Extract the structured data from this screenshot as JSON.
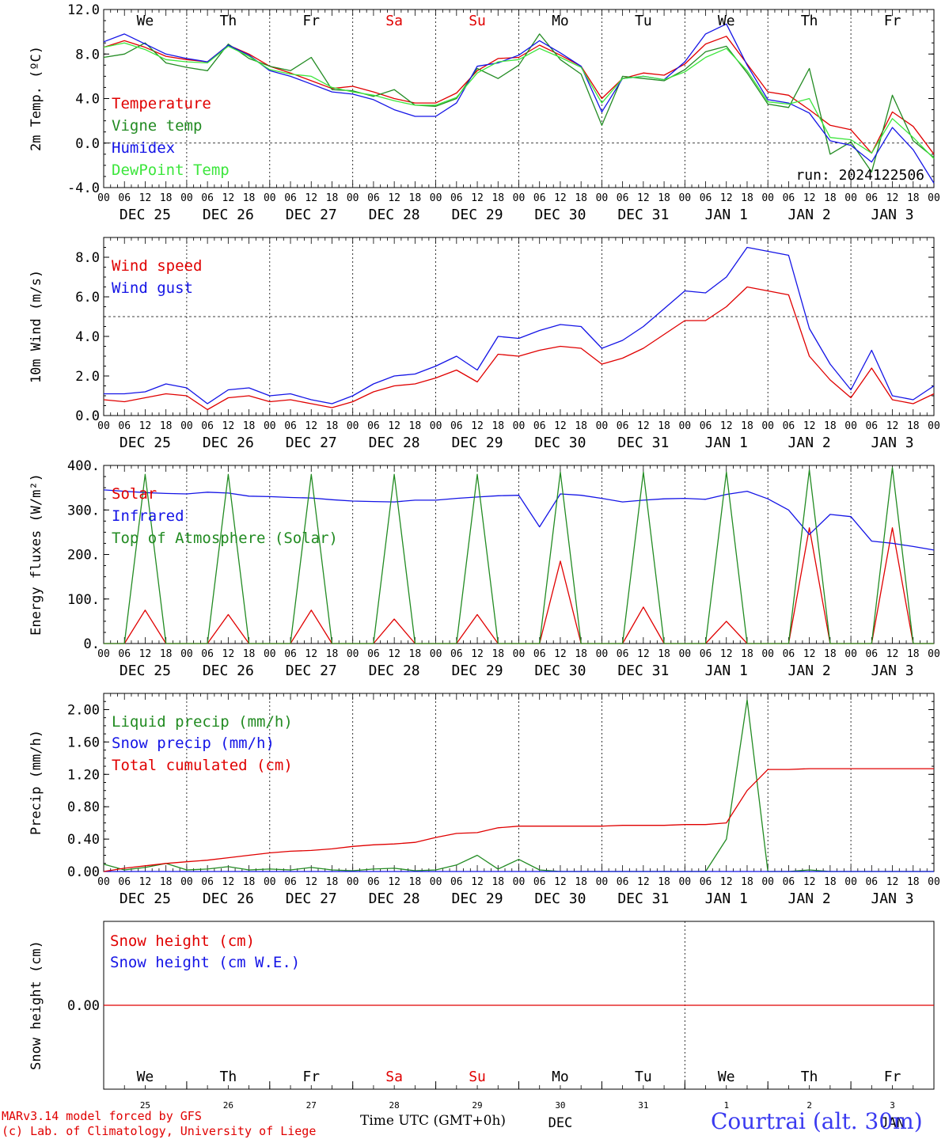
{
  "chart_data": [
    {
      "type": "line",
      "id": "temp",
      "ylabel": "2m Temp. (ºC)",
      "ylim": [
        -4,
        12
      ],
      "yticks": [
        "-4.0",
        "0.0",
        "4.0",
        "8.0",
        "12.0"
      ],
      "ytick_values": [
        -4,
        0,
        4,
        8,
        12
      ],
      "reference_line": 0,
      "day_labels": [
        "We",
        "Th",
        "Fr",
        "Sa",
        "Su",
        "Mo",
        "Tu",
        "We",
        "Th",
        "Fr"
      ],
      "day_label_colors": [
        "#000000",
        "#000000",
        "#000000",
        "#e00000",
        "#e00000",
        "#000000",
        "#000000",
        "#000000",
        "#000000",
        "#000000"
      ],
      "annotation": "run: 2024122506",
      "x_hours": [
        0,
        6,
        12,
        18,
        24,
        30,
        36,
        42,
        48,
        54,
        60,
        66,
        72,
        78,
        84,
        90,
        96,
        102,
        108,
        114,
        120,
        126,
        132,
        138,
        144,
        150,
        156,
        162,
        168,
        174,
        180,
        186,
        192,
        198,
        204,
        210,
        216,
        222,
        228,
        234,
        240
      ],
      "series": [
        {
          "name": "Temperature",
          "color": "#e00000",
          "values": [
            8.6,
            9.2,
            8.6,
            7.8,
            7.5,
            7.3,
            8.8,
            8.0,
            6.9,
            6.3,
            5.6,
            4.9,
            5.1,
            4.6,
            4.0,
            3.6,
            3.6,
            4.5,
            6.5,
            7.6,
            7.7,
            8.8,
            7.9,
            6.9,
            4.0,
            5.8,
            6.3,
            6.1,
            7.1,
            8.9,
            9.6,
            7.1,
            4.6,
            4.3,
            3.0,
            1.6,
            1.2,
            -0.9,
            2.8,
            1.5,
            -1.0
          ]
        },
        {
          "name": "Vigne temp",
          "color": "#228b22",
          "values": [
            7.7,
            8.0,
            9.0,
            7.2,
            6.8,
            6.5,
            8.9,
            7.6,
            6.9,
            6.5,
            7.7,
            4.8,
            4.7,
            4.2,
            4.8,
            3.4,
            3.3,
            4.0,
            6.7,
            5.8,
            7.0,
            9.8,
            7.5,
            6.2,
            1.6,
            6.0,
            5.8,
            5.6,
            6.6,
            8.2,
            8.7,
            6.3,
            3.5,
            3.2,
            6.7,
            -1.0,
            0.1,
            -2.6,
            4.3,
            0.2,
            -1.3
          ]
        },
        {
          "name": "Humidex",
          "color": "#1414e6",
          "values": [
            9.1,
            9.8,
            8.9,
            8.0,
            7.6,
            7.3,
            8.8,
            7.9,
            6.5,
            6.0,
            5.3,
            4.6,
            4.4,
            3.9,
            3.0,
            2.4,
            2.4,
            3.6,
            6.9,
            7.2,
            7.9,
            9.2,
            8.1,
            6.9,
            2.8,
            5.8,
            6.0,
            5.7,
            7.3,
            9.8,
            10.7,
            7.0,
            3.9,
            3.6,
            2.7,
            0.2,
            -0.2,
            -1.7,
            1.4,
            -0.6,
            -3.6
          ]
        },
        {
          "name": "DewPoint Temp",
          "color": "#3ce63c",
          "values": [
            8.6,
            9.0,
            8.4,
            7.5,
            7.3,
            7.2,
            8.7,
            7.8,
            6.6,
            6.2,
            6.0,
            5.0,
            4.6,
            4.3,
            3.8,
            3.4,
            3.4,
            4.1,
            6.3,
            7.3,
            7.5,
            8.5,
            7.7,
            6.8,
            3.6,
            5.8,
            6.0,
            5.7,
            6.4,
            7.7,
            8.5,
            6.5,
            3.7,
            3.5,
            4.0,
            0.5,
            0.3,
            -0.9,
            2.2,
            0.5,
            -1.4
          ]
        }
      ]
    },
    {
      "type": "line",
      "id": "wind",
      "ylabel": "10m Wind (m/s)",
      "ylim": [
        0,
        9
      ],
      "yticks": [
        "0.0",
        "2.0",
        "4.0",
        "6.0",
        "8.0"
      ],
      "ytick_values": [
        0,
        2,
        4,
        6,
        8
      ],
      "reference_line": 5,
      "x_hours": [
        0,
        6,
        12,
        18,
        24,
        30,
        36,
        42,
        48,
        54,
        60,
        66,
        72,
        78,
        84,
        90,
        96,
        102,
        108,
        114,
        120,
        126,
        132,
        138,
        144,
        150,
        156,
        162,
        168,
        174,
        180,
        186,
        192,
        198,
        204,
        210,
        216,
        222,
        228,
        234,
        240
      ],
      "series": [
        {
          "name": "Wind speed",
          "color": "#e00000",
          "values": [
            0.8,
            0.7,
            0.9,
            1.1,
            1.0,
            0.3,
            0.9,
            1.0,
            0.7,
            0.8,
            0.6,
            0.4,
            0.7,
            1.2,
            1.5,
            1.6,
            1.9,
            2.3,
            1.7,
            3.1,
            3.0,
            3.3,
            3.5,
            3.4,
            2.6,
            2.9,
            3.4,
            4.1,
            4.8,
            4.8,
            5.5,
            6.5,
            6.3,
            6.1,
            3.0,
            1.8,
            0.9,
            2.4,
            0.8,
            0.6,
            1.1
          ]
        },
        {
          "name": "Wind gust",
          "color": "#1414e6",
          "values": [
            1.1,
            1.1,
            1.2,
            1.6,
            1.4,
            0.6,
            1.3,
            1.4,
            1.0,
            1.1,
            0.8,
            0.6,
            1.0,
            1.6,
            2.0,
            2.1,
            2.5,
            3.0,
            2.3,
            4.0,
            3.9,
            4.3,
            4.6,
            4.5,
            3.4,
            3.8,
            4.5,
            5.4,
            6.3,
            6.2,
            7.0,
            8.5,
            8.3,
            8.1,
            4.4,
            2.6,
            1.3,
            3.3,
            1.0,
            0.8,
            1.5
          ]
        }
      ]
    },
    {
      "type": "line",
      "id": "flux",
      "ylabel": "Energy fluxes (W/m²)",
      "ylim": [
        0,
        400
      ],
      "yticks": [
        "0.",
        "100.",
        "200.",
        "300.",
        "400."
      ],
      "ytick_values": [
        0,
        100,
        200,
        300,
        400
      ],
      "x_hours": [
        0,
        6,
        12,
        18,
        24,
        30,
        36,
        42,
        48,
        54,
        60,
        66,
        72,
        78,
        84,
        90,
        96,
        102,
        108,
        114,
        120,
        126,
        132,
        138,
        144,
        150,
        156,
        162,
        168,
        174,
        180,
        186,
        192,
        198,
        204,
        210,
        216,
        222,
        228,
        234,
        240
      ],
      "series": [
        {
          "name": "Solar",
          "color": "#e00000",
          "values": [
            0,
            0,
            75,
            0,
            0,
            0,
            65,
            0,
            0,
            0,
            75,
            0,
            0,
            0,
            55,
            0,
            0,
            0,
            65,
            0,
            0,
            0,
            185,
            0,
            0,
            0,
            82,
            0,
            0,
            0,
            50,
            0,
            0,
            0,
            260,
            0,
            0,
            0,
            260,
            0,
            0
          ]
        },
        {
          "name": "Infrared",
          "color": "#1414e6",
          "values": [
            345,
            342,
            339,
            337,
            336,
            340,
            338,
            331,
            330,
            328,
            327,
            323,
            320,
            319,
            318,
            322,
            322,
            326,
            329,
            332,
            333,
            262,
            336,
            333,
            326,
            318,
            322,
            325,
            326,
            324,
            335,
            342,
            325,
            300,
            245,
            290,
            285,
            230,
            225,
            218,
            210
          ]
        },
        {
          "name": "Top of Atmosphere (Solar)",
          "color": "#228b22",
          "values": [
            0,
            0,
            380,
            0,
            0,
            0,
            380,
            0,
            0,
            0,
            380,
            0,
            0,
            0,
            380,
            0,
            0,
            0,
            380,
            0,
            0,
            0,
            385,
            0,
            0,
            0,
            385,
            0,
            0,
            0,
            385,
            0,
            0,
            0,
            390,
            0,
            0,
            0,
            395,
            0,
            0
          ]
        }
      ]
    },
    {
      "type": "line",
      "id": "precip",
      "ylabel": "Precip (mm/h)",
      "ylim": [
        0,
        2.2
      ],
      "yticks": [
        "0.00",
        "0.40",
        "0.80",
        "1.20",
        "1.60",
        "2.00"
      ],
      "ytick_values": [
        0,
        0.4,
        0.8,
        1.2,
        1.6,
        2.0
      ],
      "x_hours": [
        0,
        6,
        12,
        18,
        24,
        30,
        36,
        42,
        48,
        54,
        60,
        66,
        72,
        78,
        84,
        90,
        96,
        102,
        108,
        114,
        120,
        126,
        132,
        138,
        144,
        150,
        156,
        162,
        168,
        174,
        180,
        186,
        192,
        198,
        204,
        210,
        216,
        222,
        228,
        234,
        240
      ],
      "series": [
        {
          "name": "Liquid precip (mm/h)",
          "color": "#228b22",
          "values": [
            0.09,
            0.02,
            0.05,
            0.1,
            0.02,
            0.03,
            0.06,
            0.02,
            0.03,
            0.02,
            0.05,
            0.02,
            0.01,
            0.03,
            0.04,
            0.01,
            0.02,
            0.08,
            0.2,
            0.03,
            0.15,
            0.02,
            0,
            0,
            0,
            0,
            0,
            0,
            0,
            0,
            0.4,
            2.12,
            0,
            0,
            0.02,
            0,
            0,
            0,
            0,
            0,
            0
          ]
        },
        {
          "name": "Snow precip (mm/h)",
          "color": "#1414e6",
          "values": [
            0,
            0,
            0,
            0,
            0,
            0,
            0,
            0,
            0,
            0,
            0,
            0,
            0,
            0,
            0,
            0,
            0,
            0,
            0,
            0,
            0,
            0,
            0,
            0,
            0,
            0,
            0,
            0,
            0,
            0,
            0,
            0,
            0,
            0,
            0,
            0,
            0,
            0,
            0,
            0,
            0
          ]
        },
        {
          "name": "Total cumulated (cm)",
          "color": "#e00000",
          "values": [
            0.0,
            0.04,
            0.07,
            0.1,
            0.12,
            0.14,
            0.17,
            0.2,
            0.23,
            0.25,
            0.26,
            0.28,
            0.31,
            0.33,
            0.34,
            0.36,
            0.42,
            0.47,
            0.48,
            0.54,
            0.56,
            0.56,
            0.56,
            0.56,
            0.56,
            0.57,
            0.57,
            0.57,
            0.58,
            0.58,
            0.6,
            1.0,
            1.26,
            1.26,
            1.27,
            1.27,
            1.27,
            1.27,
            1.27,
            1.27,
            1.27
          ]
        }
      ]
    },
    {
      "type": "line",
      "id": "snow",
      "ylabel": "Snow height (cm)",
      "yticks": [
        "0.00"
      ],
      "ytick_values": [
        0
      ],
      "day_labels": [
        "We",
        "Th",
        "Fr",
        "Sa",
        "Su",
        "Mo",
        "Tu",
        "We",
        "Th",
        "Fr"
      ],
      "day_label_colors": [
        "#000000",
        "#000000",
        "#000000",
        "#e00000",
        "#e00000",
        "#000000",
        "#000000",
        "#000000",
        "#000000",
        "#000000"
      ],
      "date_numbers": [
        "25",
        "26",
        "27",
        "28",
        "29",
        "30",
        "31",
        "1",
        "2",
        "3"
      ],
      "series": [
        {
          "name": "Snow height (cm)",
          "color": "#e00000",
          "values": [
            0,
            0
          ]
        },
        {
          "name": "Snow height (cm W.E.)",
          "color": "#1414e6",
          "values": []
        }
      ]
    }
  ],
  "axis": {
    "hour_labels": [
      "00",
      "06",
      "12",
      "18"
    ],
    "date_labels": [
      "DEC 25",
      "DEC 26",
      "DEC 27",
      "DEC 28",
      "DEC 29",
      "DEC 30",
      "DEC 31",
      "JAN  1",
      "JAN  2",
      "JAN  3"
    ],
    "last_hour_label": "00"
  },
  "footer": {
    "model": "MARv3.14 model forced by GFS",
    "lab": "(c) Lab. of Climatology, University of Liege",
    "xtitle": "Time UTC (GMT+0h)",
    "overlay_dec": "DEC",
    "overlay_jan": "JAN",
    "station": "Courtrai (alt. 30m)"
  }
}
